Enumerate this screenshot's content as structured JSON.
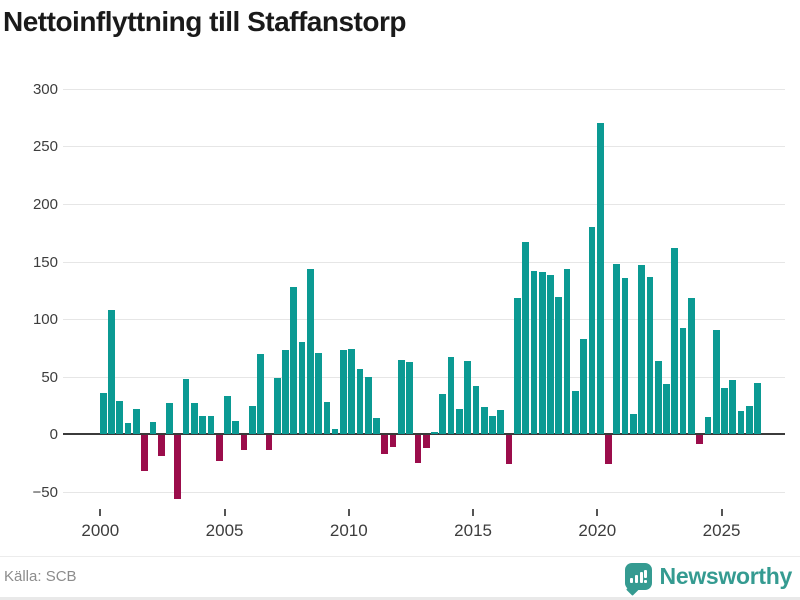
{
  "title": "Nettoinflyttning till Staffanstorp",
  "source": "Källa: SCB",
  "logo": {
    "text": "Newsworthy",
    "icon": "newsworthy-bubble-chart-icon"
  },
  "colors": {
    "positive_bar": "#0b9a93",
    "negative_bar": "#9b0d4b",
    "gridline": "#e6e6e6",
    "zero_line": "#3b3b3b",
    "title_text": "#1a1a1a",
    "axis_text": "#3d3d3d",
    "source_text": "#8c8c8c",
    "logo_teal": "#359b91",
    "background": "#ffffff"
  },
  "chart_data": {
    "type": "bar",
    "title": "Nettoinflyttning till Staffanstorp",
    "xlabel": "",
    "ylabel": "",
    "ylim": [
      -75,
      315
    ],
    "grid": "horizontal",
    "legend": "none",
    "gridline_values": [
      300,
      250,
      200,
      150,
      100,
      50,
      0,
      -50
    ],
    "x_tick_labels": [
      "2000",
      "2005",
      "2010",
      "2015",
      "2020",
      "2025"
    ],
    "start_year": 2000,
    "periods_per_year": 3,
    "period_labels": [
      "2000-1",
      "2000-2",
      "2000-3",
      "2001-1",
      "2001-2",
      "2001-3",
      "2002-1",
      "2002-2",
      "2002-3",
      "2003-1",
      "2003-2",
      "2003-3",
      "2004-1",
      "2004-2",
      "2004-3",
      "2005-1",
      "2005-2",
      "2005-3",
      "2006-1",
      "2006-2",
      "2006-3",
      "2007-1",
      "2007-2",
      "2007-3",
      "2008-1",
      "2008-2",
      "2008-3",
      "2009-1",
      "2009-2",
      "2009-3",
      "2010-1",
      "2010-2",
      "2010-3",
      "2011-1",
      "2011-2",
      "2011-3",
      "2012-1",
      "2012-2",
      "2012-3",
      "2013-1",
      "2013-2",
      "2013-3",
      "2014-1",
      "2014-2",
      "2014-3",
      "2015-1",
      "2015-2",
      "2015-3",
      "2016-1",
      "2016-2",
      "2016-3",
      "2017-1",
      "2017-2",
      "2017-3",
      "2018-1",
      "2018-2",
      "2018-3",
      "2019-1",
      "2019-2",
      "2019-3",
      "2020-1",
      "2020-2",
      "2020-3",
      "2021-1",
      "2021-2",
      "2021-3",
      "2022-1",
      "2022-2",
      "2022-3",
      "2023-1",
      "2023-2",
      "2023-3",
      "2024-1",
      "2024-2",
      "2024-3",
      "2025-1",
      "2025-2",
      "2025-3",
      "2026-1",
      "2026-2"
    ],
    "values": [
      36,
      108,
      29,
      10,
      22,
      -31,
      11,
      -18,
      27,
      -55,
      48,
      27,
      16,
      16,
      -22,
      33,
      12,
      -13,
      25,
      70,
      -13,
      49,
      73,
      128,
      80,
      144,
      71,
      28,
      5,
      73,
      74,
      57,
      50,
      14,
      -16,
      -10,
      65,
      63,
      -24,
      -11,
      2,
      35,
      67,
      22,
      64,
      42,
      24,
      16,
      21,
      -25,
      118,
      167,
      142,
      141,
      138,
      119,
      144,
      38,
      83,
      180,
      270,
      -25,
      148,
      136,
      18,
      147,
      137,
      64,
      44,
      162,
      92,
      118,
      -8,
      15,
      91,
      40,
      47,
      20,
      25,
      45
    ]
  }
}
